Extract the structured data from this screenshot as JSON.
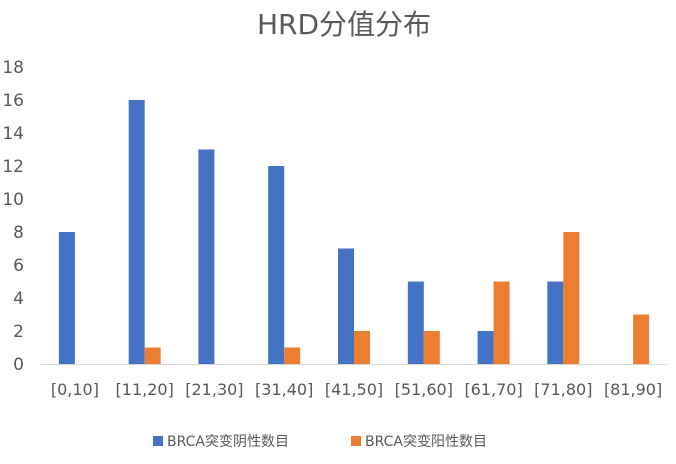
{
  "chart_data": {
    "type": "bar",
    "title": "HRD分值分布",
    "xlabel": "",
    "ylabel": "",
    "ylim": [
      0,
      18
    ],
    "yticks": [
      0,
      2,
      4,
      6,
      8,
      10,
      12,
      14,
      16,
      18
    ],
    "grid": false,
    "legend_position": "bottom",
    "categories": [
      "[0,10]",
      "[11,20]",
      "[21,30]",
      "[31,40]",
      "[41,50]",
      "[51,60]",
      "[61,70]",
      "[71,80]",
      "[81,90]"
    ],
    "series": [
      {
        "name": "BRCA突变阴性数目",
        "color": "#4472C4",
        "values": [
          8,
          16,
          13,
          12,
          7,
          5,
          2,
          5,
          0
        ]
      },
      {
        "name": "BRCA突变阳性数目",
        "color": "#ED7D31",
        "values": [
          0,
          1,
          0,
          1,
          2,
          2,
          5,
          8,
          3
        ]
      }
    ]
  }
}
